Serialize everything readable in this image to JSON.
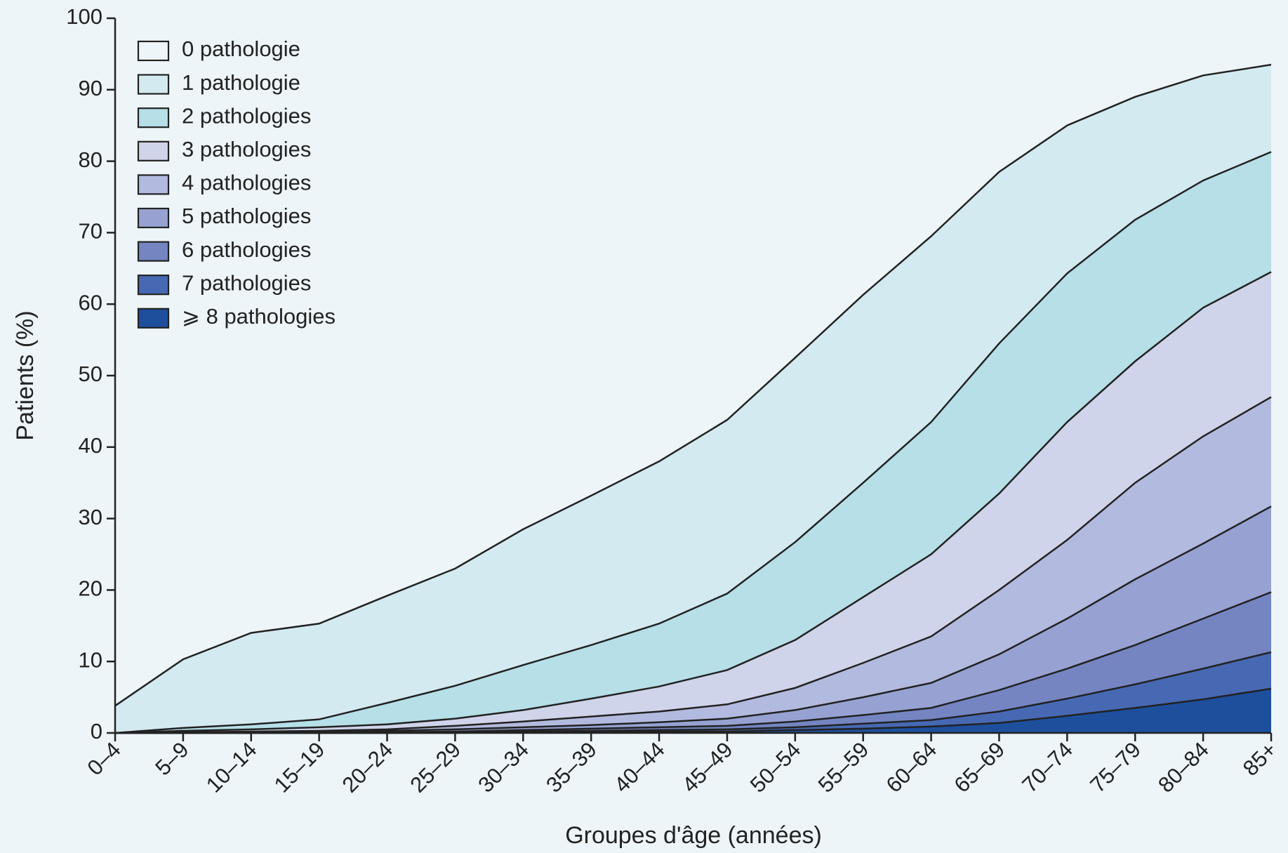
{
  "chart_data": {
    "type": "stacked-area",
    "xlabel": "Groupes d'âge (années)",
    "ylabel": "Patients (%)",
    "categories": [
      "0–4",
      "5–9",
      "10–14",
      "15–19",
      "20–24",
      "25–29",
      "30–34",
      "35–39",
      "40–44",
      "45–49",
      "50–54",
      "55–59",
      "60–64",
      "65–69",
      "70–74",
      "75–79",
      "80–84",
      "85+"
    ],
    "ylim": [
      0,
      100
    ],
    "yticks": [
      0,
      10,
      20,
      30,
      40,
      50,
      60,
      70,
      80,
      90,
      100
    ],
    "legend": "upper left",
    "series": [
      {
        "name": "0 pathologie",
        "color": "#edf5f8",
        "values": [
          96.2,
          89.7,
          86,
          84.7,
          80.8,
          77,
          71.5,
          66.8,
          62,
          56.2,
          47.5,
          38.7,
          30.5,
          21.5,
          15,
          11,
          8,
          6.5
        ]
      },
      {
        "name": "1 pathologie",
        "color": "#d4eaf1",
        "values": [
          3.8,
          9.6,
          12.8,
          13.4,
          15,
          16.4,
          19,
          20.9,
          22.7,
          24.3,
          25.8,
          26.3,
          26,
          24,
          20.7,
          17.2,
          14.7,
          12.2
        ]
      },
      {
        "name": "2 pathologies",
        "color": "#b6dfe8",
        "values": [
          0,
          0.4,
          0.7,
          1.1,
          3,
          4.6,
          6.3,
          7.5,
          8.8,
          10.7,
          13.7,
          16,
          18.5,
          21,
          20.8,
          19.8,
          17.8,
          16.8
        ]
      },
      {
        "name": "3 pathologies",
        "color": "#cfd4ea",
        "values": [
          0,
          0.2,
          0.3,
          0.5,
          0.7,
          1,
          1.6,
          2.5,
          3.5,
          4.8,
          6.7,
          9.2,
          11.5,
          13.5,
          16.5,
          17,
          18,
          17.5
        ]
      },
      {
        "name": "4 pathologies",
        "color": "#b3badf",
        "values": [
          0,
          0.1,
          0.1,
          0.2,
          0.2,
          0.5,
          0.8,
          1.2,
          1.5,
          2,
          3.1,
          4.8,
          6.5,
          9,
          11,
          13.5,
          15,
          15.3
        ]
      },
      {
        "name": "5 pathologies",
        "color": "#97a2d3",
        "values": [
          0,
          0,
          0.1,
          0.1,
          0.2,
          0.3,
          0.4,
          0.5,
          0.7,
          1,
          1.6,
          2.5,
          3.5,
          5,
          7,
          9.2,
          10.5,
          12
        ]
      },
      {
        "name": "6 pathologies",
        "color": "#7485c2",
        "values": [
          0,
          0,
          0,
          0,
          0.1,
          0.1,
          0.2,
          0.3,
          0.4,
          0.5,
          0.8,
          1.2,
          1.7,
          3,
          4.2,
          5.5,
          7,
          8.4
        ]
      },
      {
        "name": "7 pathologies",
        "color": "#4769b3",
        "values": [
          0,
          0,
          0,
          0,
          0,
          0.1,
          0.1,
          0.2,
          0.2,
          0.3,
          0.4,
          0.7,
          0.9,
          1.6,
          2.4,
          3.3,
          4.3,
          5.1
        ]
      },
      {
        "name": "⩾ 8 pathologies",
        "color": "#1d4f9d",
        "values": [
          0,
          0,
          0,
          0,
          0,
          0,
          0.1,
          0.1,
          0.2,
          0.2,
          0.4,
          0.6,
          0.9,
          1.4,
          2.4,
          3.5,
          4.7,
          6.2
        ]
      }
    ]
  }
}
